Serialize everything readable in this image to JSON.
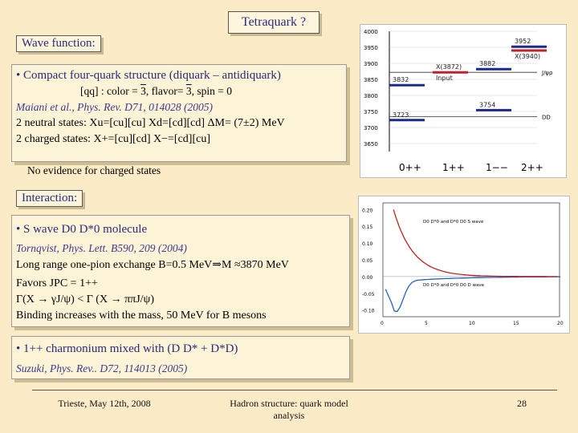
{
  "title": "Tetraquark ?",
  "wave": {
    "label": "Wave function:",
    "bullet": "• Compact four-quark structure (diquark – antidiquark)",
    "qq_prefix": "[qq] : color = ",
    "qq_color_bar": "3",
    "qq_mid": ", flavor= ",
    "qq_flavor_bar": "3",
    "qq_suffix": ", spin = 0",
    "ref": "Maiani et al., Phys. Rev. D71, 014028 (2005)",
    "neutral": "2 neutral states:  Xu=[cu][cu]    Xd=[cd][cd] ΔM= (7±2) MeV",
    "charged": "2 charged states: X+=[cu][cd]    X−=[cd][cu]",
    "noevidence": "No evidence for charged states"
  },
  "interaction": {
    "label": "Interaction:",
    "bullet": "• S wave D0 D*0 molecule",
    "ref": "Tornqvist, Phys. Lett. B590, 209 (2004)",
    "line1": "Long range one-pion exchange B=0.5 MeV⇒M ≈3870 MeV",
    "line2": "Favors  JPC = 1++",
    "line3": "Γ(X → γJ/ψ) < Γ (X → ππJ/ψ)",
    "line4": "Binding increases with the mass, 50 MeV for B mesons"
  },
  "charm": {
    "bullet": "• 1++ charmonium mixed with (D D* + D*D)",
    "ref": "Suzuki, Phys. Rev.. D72, 114013 (2005)"
  },
  "footer": {
    "left": "Trieste, May 12th, 2008",
    "center": "Hadron structure: quark model analysis",
    "page": "28"
  },
  "level_chart": {
    "y_ticks": [
      "4000",
      "3950",
      "3900",
      "3850",
      "3800",
      "3750",
      "3700",
      "3650"
    ],
    "x_labels": [
      "0++",
      "1++",
      "1−−",
      "2++"
    ],
    "right_labels": [
      "J/ψρ",
      "DD"
    ],
    "levels": [
      {
        "label": "3952",
        "mass": 3952,
        "column": "2++",
        "color": "#1a2a8a"
      },
      {
        "label": "X(3940)",
        "mass": 3940,
        "column": "2++",
        "color": "#c0202a"
      },
      {
        "label": "3882",
        "mass": 3882,
        "column": "1--",
        "color": "#1a2a8a"
      },
      {
        "label": "X(3872)",
        "mass": 3872,
        "column": "1++",
        "color": "#c0202a"
      },
      {
        "label": "Input",
        "mass": 3872,
        "column": "1++",
        "color": "#1a2a8a"
      },
      {
        "label": "3832",
        "mass": 3832,
        "column": "0++",
        "color": "#1a2a8a"
      },
      {
        "label": "3754",
        "mass": 3754,
        "column": "1--",
        "color": "#1a2a8a"
      },
      {
        "label": "3723",
        "mass": 3723,
        "column": "0++",
        "color": "#1a2a8a"
      }
    ],
    "thresholds": [
      3872,
      3734
    ]
  },
  "potential_chart": {
    "y_ticks": [
      "0.20",
      "0.15",
      "0.10",
      "0.05",
      "0.00",
      "-0.05",
      "-0.10"
    ],
    "x_ticks": [
      "0",
      "5",
      "10",
      "15",
      "20"
    ],
    "legend1": "D0 D*0 and D*0 D0 S wave",
    "legend2": "D0 D*0 and D*0 D0 D wave"
  }
}
